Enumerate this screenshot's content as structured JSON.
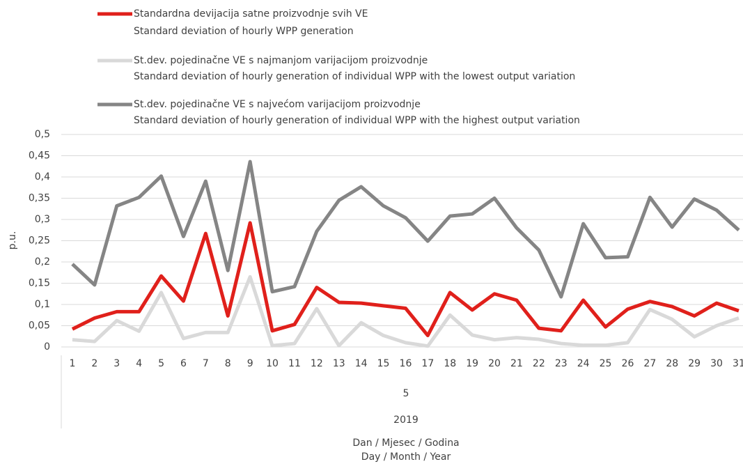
{
  "chart_data": {
    "type": "line",
    "y_label": "p.u.",
    "x_label": [
      "Dan / Mjesec / Godina",
      "Day / Month / Year"
    ],
    "month": "5",
    "year": "2019",
    "categories": [
      "1",
      "2",
      "3",
      "4",
      "5",
      "6",
      "7",
      "8",
      "9",
      "10",
      "11",
      "12",
      "13",
      "14",
      "15",
      "16",
      "17",
      "18",
      "19",
      "20",
      "21",
      "22",
      "23",
      "24",
      "25",
      "26",
      "27",
      "28",
      "29",
      "30",
      "31"
    ],
    "series": [
      {
        "name": "Standardna devijacija satne proizvodnje svih VE",
        "name_en": "Standard deviation of hourly WPP generation",
        "color": "#e0201b",
        "values": [
          0.042,
          0.068,
          0.083,
          0.083,
          0.167,
          0.108,
          0.267,
          0.073,
          0.292,
          0.038,
          0.053,
          0.14,
          0.105,
          0.103,
          0.097,
          0.091,
          0.027,
          0.128,
          0.087,
          0.125,
          0.11,
          0.044,
          0.038,
          0.11,
          0.047,
          0.089,
          0.107,
          0.095,
          0.073,
          0.103,
          0.085
        ]
      },
      {
        "name": "St.dev. pojedinačne VE s najmanjom varijacijom proizvodnje",
        "name_en": "Standard deviation of hourly generation of individual WPP with the lowest output variation",
        "color": "#d9d9d9",
        "values": [
          0.017,
          0.013,
          0.062,
          0.037,
          0.128,
          0.02,
          0.034,
          0.034,
          0.165,
          0.003,
          0.008,
          0.09,
          0.003,
          0.057,
          0.027,
          0.01,
          0.002,
          0.075,
          0.028,
          0.017,
          0.022,
          0.018,
          0.008,
          0.004,
          0.004,
          0.01,
          0.088,
          0.065,
          0.024,
          0.05,
          0.068
        ]
      },
      {
        "name": "St.dev. pojedinačne VE s najvećom varijacijom proizvodnje",
        "name_en": "Standard deviation of hourly generation of individual WPP with the highest output variation",
        "color": "#858585",
        "values": [
          0.195,
          0.146,
          0.332,
          0.352,
          0.402,
          0.26,
          0.39,
          0.18,
          0.436,
          0.13,
          0.142,
          0.272,
          0.345,
          0.377,
          0.332,
          0.304,
          0.249,
          0.308,
          0.313,
          0.35,
          0.28,
          0.228,
          0.118,
          0.29,
          0.21,
          0.212,
          0.352,
          0.282,
          0.348,
          0.322,
          0.275
        ]
      }
    ],
    "ylim": [
      0,
      0.5
    ],
    "yticks": [
      0,
      {
        "value": 0.05,
        "label": "0,05"
      },
      {
        "value": 0.1,
        "label": "0,1"
      },
      {
        "value": 0.15,
        "label": "0,15"
      },
      {
        "value": 0.2,
        "label": "0,2"
      },
      {
        "value": 0.25,
        "label": "0,25"
      },
      {
        "value": 0.3,
        "label": "0,3"
      },
      {
        "value": 0.35,
        "label": "0,35"
      },
      {
        "value": 0.4,
        "label": "0,4"
      },
      {
        "value": 0.45,
        "label": "0,45"
      },
      {
        "value": 0.5,
        "label": "0,5"
      }
    ],
    "grid": true
  }
}
